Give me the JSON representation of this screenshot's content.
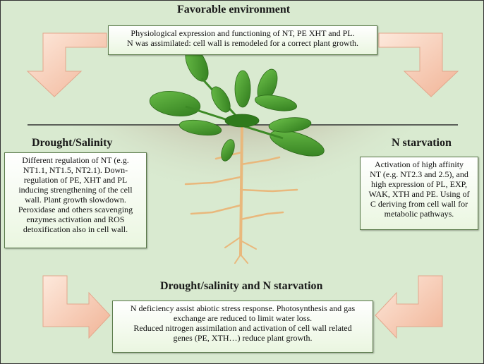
{
  "titles": {
    "top": "Favorable environment",
    "left": "Drought/Salinity",
    "right": "N starvation",
    "bottom": "Drought/salinity and N starvation"
  },
  "boxes": {
    "top": [
      "Physiological expression and functioning of NT, PE XHT and PL.",
      "N was assimilated: cell wall is remodeled for a correct plant growth."
    ],
    "left": [
      "Different regulation of NT (e.g.",
      "NT1.1, NT1.5, NT2.1). Down-",
      "regulation of PE, XHT and PL",
      "inducing strengthening of the cell",
      "wall. Plant growth slowdown.",
      "Peroxidase and others scavenging",
      "enzymes activation and ROS",
      "detoxification also in cell wall."
    ],
    "right": [
      "Activation of high affinity",
      "NT (e.g. NT2.3 and 2.5), and",
      "high expression of PL, EXP,",
      "WAK, XTH and PE. Using of",
      "C deriving from cell wall for",
      "metabolic pathways."
    ],
    "bottom": [
      "N deficiency assist abiotic stress response. Photosynthesis and gas",
      "exchange are reduced to limit water loss.",
      "Reduced nitrogen assimilation and activation of  cell wall related",
      "genes (PE, XTH…) reduce plant growth."
    ]
  },
  "colors": {
    "background": "#d9ead0",
    "soil": "#9a7a68",
    "leaf": "#4f9a32",
    "root": "#e8b87a",
    "arrow": "#f6c9b0"
  },
  "icons": [
    "curved-arrow-icon",
    "plant-illustration"
  ]
}
